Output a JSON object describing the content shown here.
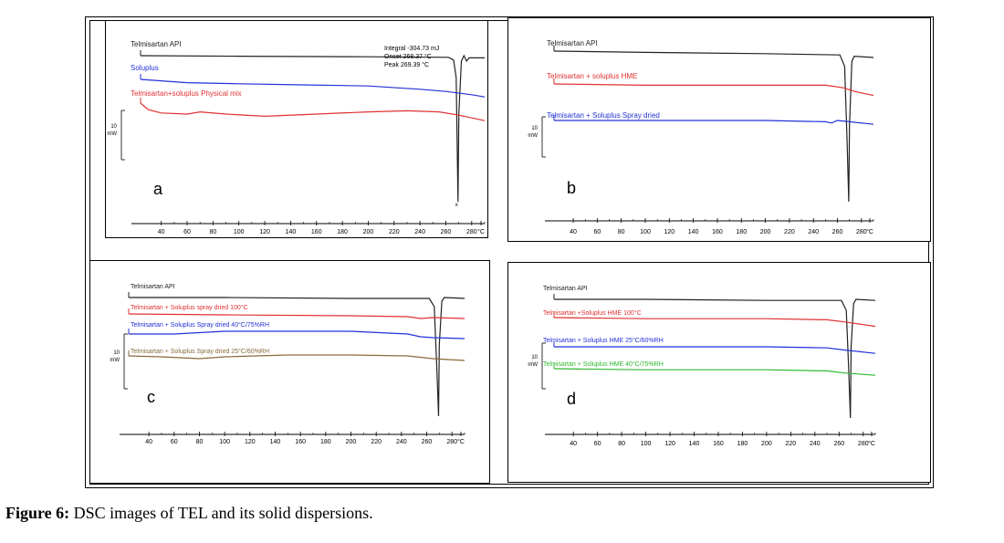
{
  "figure": {
    "caption_label": "Figure 6:",
    "caption_text": " DSC images of TEL and its solid dispersions."
  },
  "colors": {
    "black": "#222222",
    "blue": "#2230d8",
    "red": "#e03030",
    "brown": "#8a6a3a",
    "green": "#2cb82c"
  },
  "chart_data": [
    {
      "type": "line",
      "panel_letter": "a",
      "x_unit": "°C",
      "xlim": [
        24,
        290
      ],
      "x_ticks": [
        "40",
        "60",
        "80",
        "100",
        "120",
        "140",
        "160",
        "180",
        "200",
        "220",
        "240",
        "260",
        "280",
        "°C"
      ],
      "scale_label": "10",
      "scale_unit": "mW",
      "annotation": {
        "lines": [
          "Integral  -304.73 mJ",
          "Onset      268.37 °C",
          "Peak       269.39 °C"
        ]
      },
      "series": [
        {
          "name": "Telmisartan API",
          "color": "black",
          "offset": 0,
          "points": [
            [
              24,
              0
            ],
            [
              100,
              0.5
            ],
            [
              200,
              1
            ],
            [
              262,
              1.5
            ],
            [
              266,
              4
            ],
            [
              268,
              20
            ],
            [
              269.39,
              100
            ],
            [
              270,
              40
            ],
            [
              272,
              5
            ],
            [
              274,
              0
            ],
            [
              276,
              5
            ],
            [
              278,
              2
            ],
            [
              290,
              2
            ]
          ]
        },
        {
          "name": "Soluplus",
          "color": "blue",
          "offset": 0,
          "points": [
            [
              24,
              0
            ],
            [
              60,
              3
            ],
            [
              100,
              4
            ],
            [
              150,
              5
            ],
            [
              200,
              6
            ],
            [
              240,
              9
            ],
            [
              260,
              11
            ],
            [
              280,
              14
            ],
            [
              290,
              16
            ]
          ]
        },
        {
          "name": "Telmisartan+soluplus Physical mix",
          "color": "red",
          "offset": 0,
          "points": [
            [
              24,
              0
            ],
            [
              30,
              6
            ],
            [
              40,
              9
            ],
            [
              60,
              10
            ],
            [
              70,
              8
            ],
            [
              90,
              10
            ],
            [
              120,
              12
            ],
            [
              160,
              10
            ],
            [
              200,
              8
            ],
            [
              230,
              7
            ],
            [
              255,
              8
            ],
            [
              270,
              11
            ],
            [
              290,
              16
            ]
          ]
        }
      ]
    },
    {
      "type": "line",
      "panel_letter": "b",
      "x_unit": "°C",
      "xlim": [
        24,
        290
      ],
      "x_ticks": [
        "40",
        "60",
        "80",
        "100",
        "120",
        "140",
        "160",
        "180",
        "200",
        "220",
        "240",
        "260",
        "280",
        "°C"
      ],
      "scale_label": "10",
      "scale_unit": "mW",
      "series": [
        {
          "name": "Telmisartan API",
          "color": "black",
          "points": [
            [
              24,
              0
            ],
            [
              100,
              1
            ],
            [
              200,
              2
            ],
            [
              262,
              3
            ],
            [
              266,
              12
            ],
            [
              268,
              60
            ],
            [
              269.4,
              100
            ],
            [
              270,
              50
            ],
            [
              272,
              8
            ],
            [
              274,
              4
            ],
            [
              290,
              5
            ]
          ]
        },
        {
          "name": "Telmisartan + soluplus HME",
          "color": "red",
          "points": [
            [
              24,
              0
            ],
            [
              100,
              1
            ],
            [
              200,
              1
            ],
            [
              250,
              1
            ],
            [
              265,
              3
            ],
            [
              275,
              6
            ],
            [
              290,
              9
            ]
          ]
        },
        {
          "name": "Telmisartan + Soluplus Spray dried",
          "color": "blue",
          "points": [
            [
              24,
              0
            ],
            [
              100,
              0
            ],
            [
              200,
              0
            ],
            [
              250,
              1
            ],
            [
              255,
              2
            ],
            [
              260,
              0
            ],
            [
              270,
              1
            ],
            [
              290,
              3
            ]
          ]
        }
      ]
    },
    {
      "type": "line",
      "panel_letter": "c",
      "x_unit": "°C",
      "xlim": [
        24,
        290
      ],
      "x_ticks": [
        "40",
        "60",
        "80",
        "100",
        "120",
        "140",
        "160",
        "180",
        "200",
        "220",
        "240",
        "260",
        "280",
        "°C"
      ],
      "scale_label": "10",
      "scale_unit": "mW",
      "series": [
        {
          "name": "Telmisartan API",
          "color": "black",
          "points": [
            [
              24,
              0
            ],
            [
              100,
              0
            ],
            [
              200,
              1
            ],
            [
              262,
              1
            ],
            [
              266,
              10
            ],
            [
              268,
              60
            ],
            [
              269.4,
              100
            ],
            [
              270,
              40
            ],
            [
              272,
              4
            ],
            [
              274,
              0
            ],
            [
              290,
              1
            ]
          ]
        },
        {
          "name": "Telmisartan + Soluplus spray dried 100°C",
          "color": "red",
          "points": [
            [
              24,
              0
            ],
            [
              100,
              1
            ],
            [
              200,
              2
            ],
            [
              245,
              3
            ],
            [
              255,
              5
            ],
            [
              265,
              4
            ],
            [
              290,
              5
            ]
          ]
        },
        {
          "name": "Telmisartan + Soluplus Spray dried 40°C/75%RH",
          "color": "blue",
          "points": [
            [
              24,
              0
            ],
            [
              60,
              0
            ],
            [
              100,
              -3
            ],
            [
              150,
              -3
            ],
            [
              200,
              -3
            ],
            [
              245,
              0
            ],
            [
              255,
              3
            ],
            [
              265,
              4
            ],
            [
              290,
              5
            ]
          ]
        },
        {
          "name": "Telmisartan + Soluplus Spray dried 25°C/60%RH",
          "color": "brown",
          "points": [
            [
              24,
              0
            ],
            [
              50,
              1
            ],
            [
              80,
              3
            ],
            [
              100,
              1
            ],
            [
              150,
              -1
            ],
            [
              200,
              -1
            ],
            [
              245,
              0
            ],
            [
              265,
              3
            ],
            [
              290,
              5
            ]
          ]
        }
      ]
    },
    {
      "type": "line",
      "panel_letter": "d",
      "x_unit": "°C",
      "xlim": [
        24,
        290
      ],
      "x_ticks": [
        "40",
        "60",
        "80",
        "100",
        "120",
        "140",
        "160",
        "180",
        "200",
        "220",
        "240",
        "260",
        "280",
        "°C"
      ],
      "scale_label": "10",
      "scale_unit": "mW",
      "series": [
        {
          "name": "Telmisartan API",
          "color": "black",
          "points": [
            [
              24,
              0
            ],
            [
              100,
              0
            ],
            [
              200,
              1
            ],
            [
              262,
              1
            ],
            [
              266,
              10
            ],
            [
              268,
              60
            ],
            [
              269.4,
              100
            ],
            [
              270,
              40
            ],
            [
              272,
              4
            ],
            [
              274,
              0
            ],
            [
              290,
              1
            ]
          ]
        },
        {
          "name": "Telmisartan +Soluplus HME 100°C",
          "color": "red",
          "points": [
            [
              24,
              0
            ],
            [
              100,
              1
            ],
            [
              200,
              1
            ],
            [
              250,
              2
            ],
            [
              265,
              4
            ],
            [
              290,
              8
            ]
          ]
        },
        {
          "name": "Telmisartan + Soluplus HME 25°C/60%RH",
          "color": "blue",
          "points": [
            [
              24,
              0
            ],
            [
              100,
              0
            ],
            [
              200,
              0
            ],
            [
              250,
              1
            ],
            [
              265,
              3
            ],
            [
              290,
              6
            ]
          ]
        },
        {
          "name": "Telmisartan + Soluplus HME 40°C/75%RH",
          "color": "green",
          "points": [
            [
              24,
              0
            ],
            [
              100,
              1
            ],
            [
              200,
              1
            ],
            [
              250,
              2
            ],
            [
              265,
              4
            ],
            [
              290,
              6
            ]
          ]
        }
      ]
    }
  ]
}
